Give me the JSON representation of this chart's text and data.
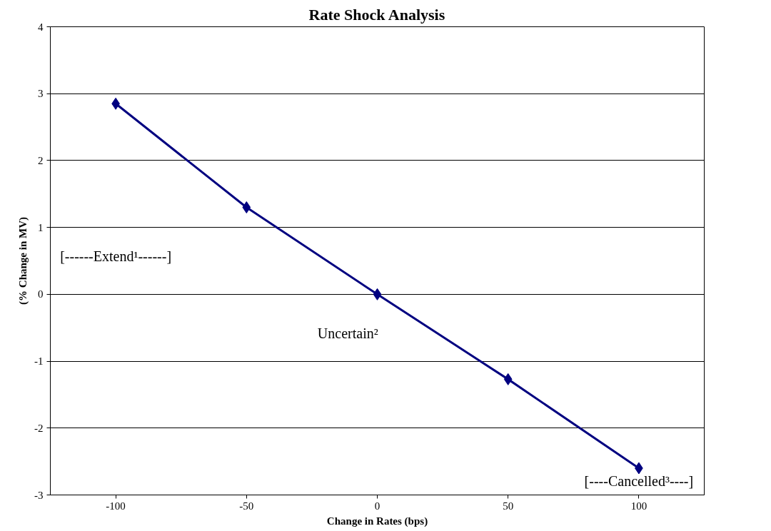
{
  "chart_data": {
    "type": "line",
    "title": "Rate Shock Analysis",
    "xlabel": "Change in Rates (bps)",
    "ylabel": "(% Change in MV)",
    "categories": [
      "-100",
      "-50",
      "0",
      "50",
      "100"
    ],
    "series": [
      {
        "color": "#000080",
        "values": [
          2.85,
          1.3,
          0.0,
          -1.27,
          -2.6
        ]
      }
    ],
    "ylim": [
      -3,
      4
    ],
    "yticks": [
      -3,
      -2,
      -1,
      0,
      1,
      2,
      3,
      4
    ],
    "grid": "y",
    "marker": "diamond",
    "line_style": "solid",
    "annotations": [
      "[------Extend¹------]",
      "Uncertain²",
      "[----Cancelled³----]"
    ]
  }
}
